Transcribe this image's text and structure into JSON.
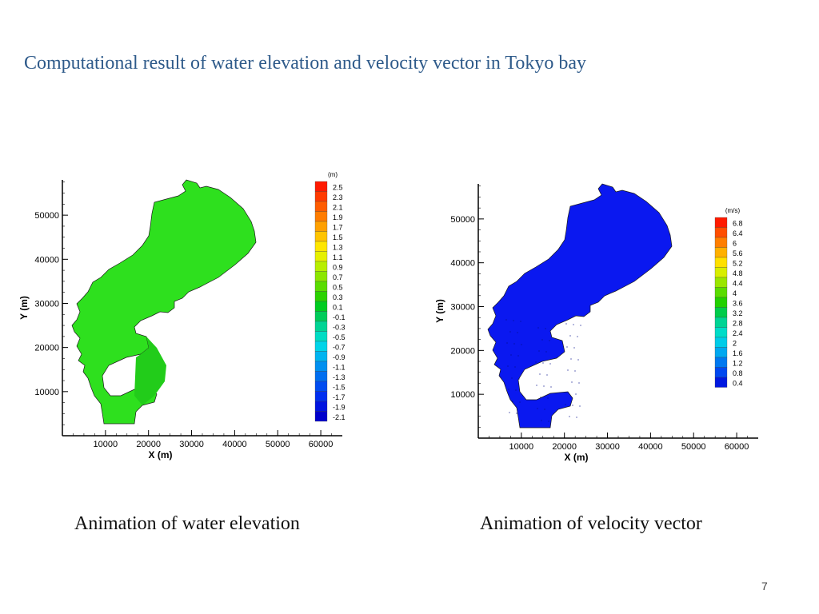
{
  "slide": {
    "title": "Computational result of water elevation and velocity vector in Tokyo bay",
    "page_number": "7"
  },
  "captions": {
    "left": "Animation of water elevation",
    "right": "Animation of velocity vector"
  },
  "figures": [
    {
      "id": "elevation",
      "xlabel": "X (m)",
      "ylabel": "Y (m)",
      "x_ticks": [
        "10000",
        "20000",
        "30000",
        "40000",
        "50000",
        "60000"
      ],
      "y_ticks": [
        "10000",
        "20000",
        "30000",
        "40000",
        "50000"
      ],
      "legend_unit": "(m)",
      "legend_levels": [
        "2.5",
        "2.3",
        "2.1",
        "1.9",
        "1.7",
        "1.5",
        "1.3",
        "1.1",
        "0.9",
        "0.7",
        "0.5",
        "0.3",
        "0.1",
        "-0.1",
        "-0.3",
        "-0.5",
        "-0.7",
        "-0.9",
        "-1.1",
        "-1.3",
        "-1.5",
        "-1.7",
        "-1.9",
        "-2.1"
      ],
      "legend_colors": [
        "#ff1a00",
        "#ff3a00",
        "#ff5c00",
        "#ff7c00",
        "#ffa000",
        "#ffc400",
        "#ffe600",
        "#e6f000",
        "#b8ee00",
        "#8ce600",
        "#5adc00",
        "#2ad200",
        "#00cc20",
        "#00cc5a",
        "#00d494",
        "#00dcc4",
        "#00d4e8",
        "#00b4f0",
        "#0090f0",
        "#006ef0",
        "#004cf0",
        "#002ef0",
        "#0014e0",
        "#0000cc"
      ],
      "fill_color": "#2ee01e"
    },
    {
      "id": "velocity",
      "xlabel": "X (m)",
      "ylabel": "Y (m)",
      "x_ticks": [
        "10000",
        "20000",
        "30000",
        "40000",
        "50000",
        "60000"
      ],
      "y_ticks": [
        "10000",
        "20000",
        "30000",
        "40000",
        "50000"
      ],
      "legend_unit": "(m/s)",
      "legend_levels": [
        "6.8",
        "6.4",
        "6",
        "5.6",
        "5.2",
        "4.8",
        "4.4",
        "4",
        "3.6",
        "3.2",
        "2.8",
        "2.4",
        "2",
        "1.6",
        "1.2",
        "0.8",
        "0.4"
      ],
      "legend_colors": [
        "#ff1a00",
        "#ff4e00",
        "#ff7e00",
        "#ffb000",
        "#ffe000",
        "#d8ee00",
        "#9ae600",
        "#5adc00",
        "#22d000",
        "#00cc4a",
        "#00d494",
        "#00dcc8",
        "#00cce8",
        "#00a8f0",
        "#0078f0",
        "#0048f0",
        "#0018e0"
      ],
      "fill_color": "#0a18f0"
    }
  ]
}
